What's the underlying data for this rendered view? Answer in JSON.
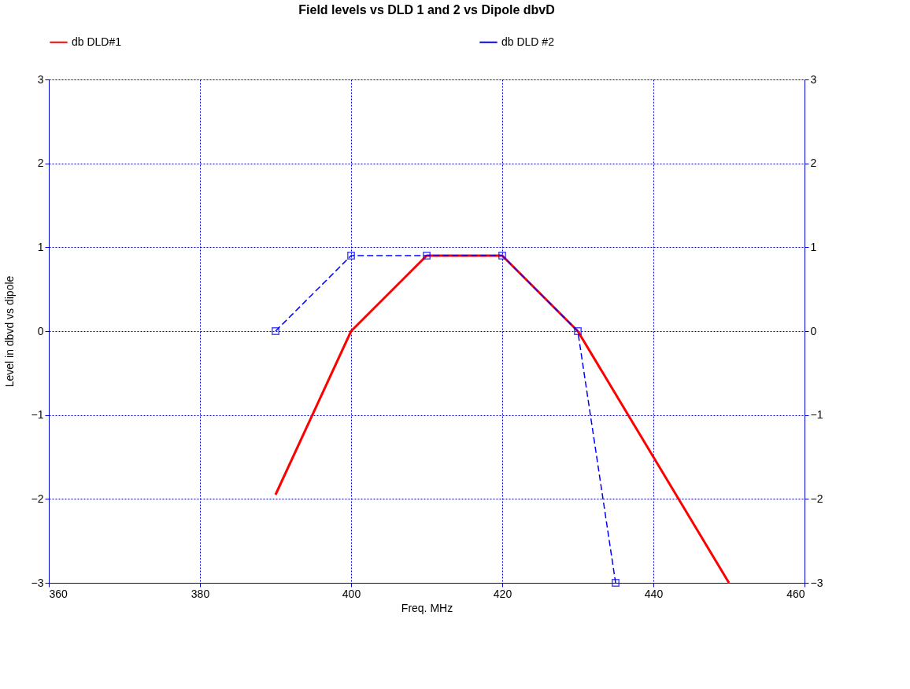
{
  "chart_data": {
    "type": "line",
    "title": "Field levels vs DLD 1 and 2 vs Dipole dbvD",
    "xlabel": "Freq. MHz",
    "ylabel": "Level in dbvd vs dipole",
    "series": [
      {
        "name": "db DLD#1",
        "color": "#ff0000",
        "x": [
          390,
          400,
          410,
          420,
          430,
          440,
          450
        ],
        "values": [
          -1.95,
          0,
          0.9,
          0.9,
          0,
          -1.5,
          -3
        ],
        "marker": "none",
        "line_style": "solid"
      },
      {
        "name": "db DLD #2",
        "color": "#0000ff",
        "x": [
          390,
          400,
          410,
          420,
          430,
          435
        ],
        "values": [
          0,
          0.9,
          0.9,
          0.9,
          0,
          -3
        ],
        "marker": "square",
        "line_style": "dashed"
      }
    ],
    "xlim": [
      360,
      460
    ],
    "xticks": [
      360,
      380,
      400,
      420,
      440,
      460
    ],
    "ylim": [
      -3,
      3
    ],
    "yticks": [
      -3,
      -2,
      -1,
      0,
      1,
      2,
      3
    ],
    "y2lim": [
      -3,
      3
    ],
    "y2ticks": [
      -3,
      -2,
      -1,
      0,
      1,
      2,
      3
    ],
    "grid": true,
    "legend": "top"
  }
}
